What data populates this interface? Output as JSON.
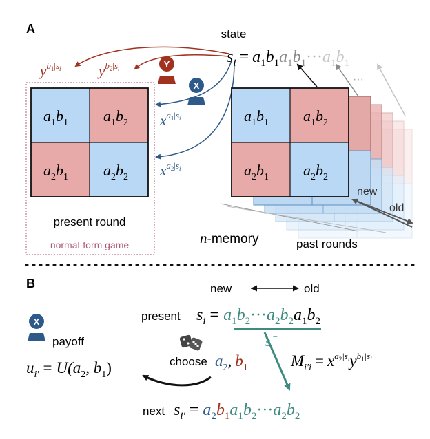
{
  "panel_a": {
    "label": "A",
    "state_word": "state",
    "state_eq": {
      "lhs_base": "s",
      "lhs_sub": "i",
      "eq": "=",
      "present": [
        "a",
        "1",
        "b",
        "1"
      ],
      "history1": [
        "a",
        "1",
        "b",
        "1"
      ],
      "dots": "···",
      "history2": [
        "a",
        "1",
        "b",
        "1"
      ]
    },
    "y_labels": [
      {
        "base": "y",
        "sup": "b",
        "sup_sub": "1",
        "cond": "|",
        "cond_base": "s",
        "cond_sub": "i"
      },
      {
        "base": "y",
        "sup": "b",
        "sup_sub": "2",
        "cond": "|",
        "cond_base": "s",
        "cond_sub": "i"
      }
    ],
    "x_labels": [
      {
        "base": "x",
        "sup": "a",
        "sup_sub": "1",
        "cond": "|",
        "cond_base": "s",
        "cond_sub": "i"
      },
      {
        "base": "x",
        "sup": "a",
        "sup_sub": "2",
        "cond": "|",
        "cond_base": "s",
        "cond_sub": "i"
      }
    ],
    "player_y": "Y",
    "player_x": "X",
    "present_matrix": {
      "cells": [
        {
          "a": "a",
          "as": "1",
          "b": "b",
          "bs": "1"
        },
        {
          "a": "a",
          "as": "1",
          "b": "b",
          "bs": "2"
        },
        {
          "a": "a",
          "as": "2",
          "b": "b",
          "bs": "1"
        },
        {
          "a": "a",
          "as": "2",
          "b": "b",
          "bs": "2"
        }
      ],
      "caption": "present round"
    },
    "game_caption": "normal-form game",
    "past_matrix": {
      "cells": [
        {
          "a": "a",
          "as": "1",
          "b": "b",
          "bs": "1"
        },
        {
          "a": "a",
          "as": "1",
          "b": "b",
          "bs": "2"
        },
        {
          "a": "a",
          "as": "2",
          "b": "b",
          "bs": "1"
        },
        {
          "a": "a",
          "as": "2",
          "b": "b",
          "bs": "2"
        }
      ]
    },
    "memory_n": "n",
    "memory_word": "-memory",
    "past_caption": "past rounds",
    "axis_new": "new",
    "axis_old": "old",
    "stack_dots": "···"
  },
  "panel_b": {
    "label": "B",
    "new_word": "new",
    "old_word": "old",
    "present_word": "present",
    "present_eq": {
      "lhs": "s",
      "lhs_sub": "i",
      "eq": "=",
      "underlined": [
        "a",
        "1",
        "b",
        "2",
        "···",
        "a",
        "2",
        "b",
        "2"
      ],
      "tail": [
        "a",
        "1",
        "b",
        "2"
      ]
    },
    "sminus": {
      "base": "s",
      "sub": "i",
      "sup": "−"
    },
    "payoff_word": "payoff",
    "player_x": "X",
    "payoff_eq": {
      "lhs": "u",
      "lhs_sub": "i′",
      "eq": "=",
      "fn": "U",
      "args": "(a",
      "args_sub1": "2",
      "comma": ", b",
      "args_sub2": "1",
      "close": ")"
    },
    "choose_word": "choose",
    "choose_a": "a",
    "choose_a_sub": "2",
    "choose_comma": ",",
    "choose_b": "b",
    "choose_b_sub": "1",
    "m_eq": {
      "base": "M",
      "sub": "i′i",
      "eq": "=",
      "x": "x",
      "xsup": "a",
      "xsup_sub": "2",
      "xcond": "|s",
      "xcond_sub": "i",
      "y": "y",
      "ysup": "b",
      "ysup_sub": "1",
      "ycond": "|s",
      "ycond_sub": "i"
    },
    "next_word": "next",
    "next_eq": {
      "lhs": "s",
      "lhs_sub": "i′",
      "eq": "=",
      "terms": [
        "a",
        "2",
        "b",
        "1",
        "a",
        "1",
        "b",
        "2",
        "···",
        "a",
        "2",
        "b",
        "2"
      ]
    }
  },
  "colors": {
    "blue_cell": "#b9d8f5",
    "red_cell": "#e8aaa8",
    "x_player": "#2e5a8a",
    "y_player": "#a1321f",
    "teal": "#3e8a80",
    "game_border": "#b05a7a"
  }
}
